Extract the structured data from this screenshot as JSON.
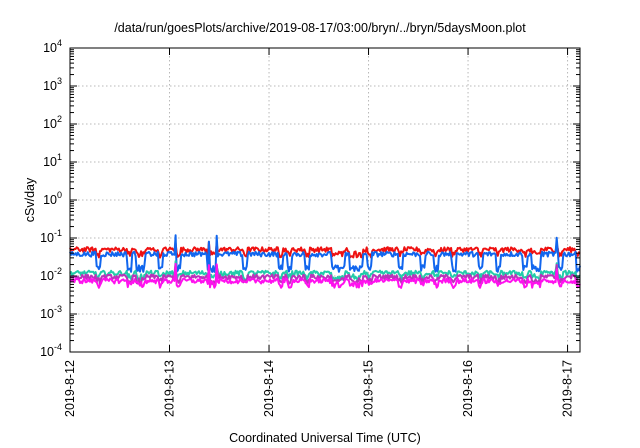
{
  "chart_data": {
    "type": "line",
    "title": "/data/run/goesPlots/archive/2019-08-17/03:00/bryn/../bryn/5daysMoon.plot",
    "xlabel": "Coordinated Universal Time (UTC)",
    "ylabel": "cSv/day",
    "yscale": "log",
    "ylim": [
      0.0001,
      10000
    ],
    "y_ticks": [
      {
        "value": 0.0001,
        "base": "10",
        "exp": "-4"
      },
      {
        "value": 0.001,
        "base": "10",
        "exp": "-3"
      },
      {
        "value": 0.01,
        "base": "10",
        "exp": "-2"
      },
      {
        "value": 0.1,
        "base": "10",
        "exp": "-1"
      },
      {
        "value": 1,
        "base": "10",
        "exp": "0"
      },
      {
        "value": 10,
        "base": "10",
        "exp": "1"
      },
      {
        "value": 100,
        "base": "10",
        "exp": "2"
      },
      {
        "value": 1000,
        "base": "10",
        "exp": "3"
      },
      {
        "value": 10000,
        "base": "10",
        "exp": "4"
      }
    ],
    "xlim": [
      "2019-08-12",
      "2019-08-17 03:00"
    ],
    "x_ticks": [
      "2019-8-12",
      "2019-8-13",
      "2019-8-14",
      "2019-8-15",
      "2019-8-16",
      "2019-8-17"
    ],
    "grid": true,
    "series": [
      {
        "color": "#ee1111",
        "base": 0.05,
        "dip": 0.038,
        "spike": 0.075
      },
      {
        "color": "#1166ee",
        "base": 0.038,
        "dip": 0.016,
        "spike": 0.1
      },
      {
        "color": "#22ccaa",
        "base": 0.012,
        "dip": 0.0095,
        "spike": 0.022
      },
      {
        "color": "#bb33bb",
        "base": 0.0095,
        "dip": 0.0075,
        "spike": 0.02
      },
      {
        "color": "#ff11ee",
        "base": 0.0075,
        "dip": 0.006,
        "spike": 0.018
      }
    ]
  }
}
